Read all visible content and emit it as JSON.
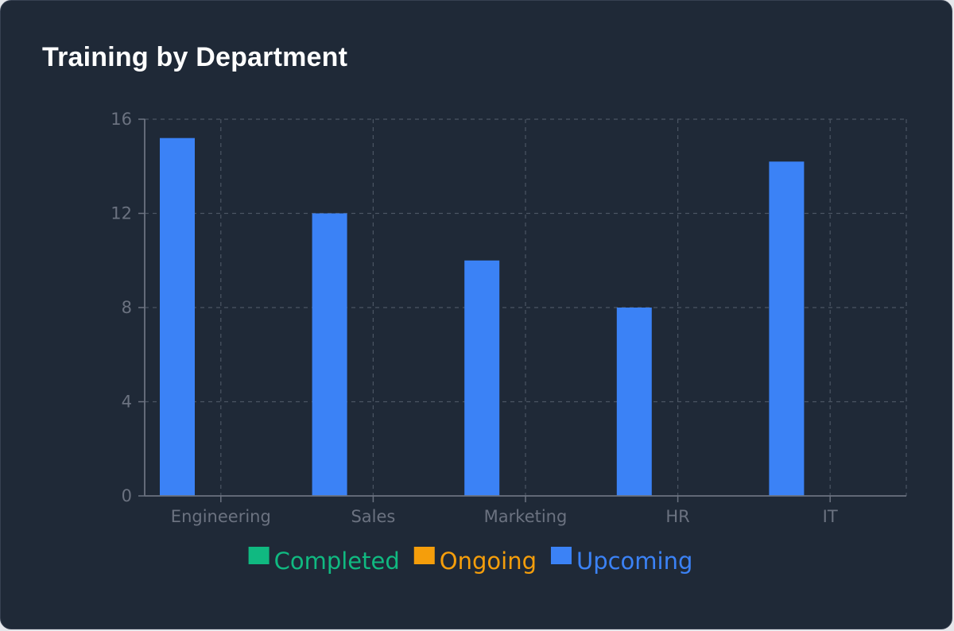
{
  "chart_data": {
    "type": "bar",
    "title": "Training by Department",
    "categories": [
      "Engineering",
      "Sales",
      "Marketing",
      "HR",
      "IT"
    ],
    "series": [
      {
        "name": "Completed",
        "color": "#10b981",
        "values": [
          0,
          0,
          0,
          0,
          0
        ]
      },
      {
        "name": "Ongoing",
        "color": "#f59e0b",
        "values": [
          0,
          0,
          0,
          0,
          0
        ]
      },
      {
        "name": "Upcoming",
        "color": "#3b82f6",
        "values": [
          15.2,
          12,
          10,
          8,
          14.2
        ]
      }
    ],
    "ylim": [
      0,
      16
    ],
    "yticks": [
      0,
      4,
      8,
      12,
      16
    ],
    "grid": true,
    "legend_position": "bottom"
  }
}
